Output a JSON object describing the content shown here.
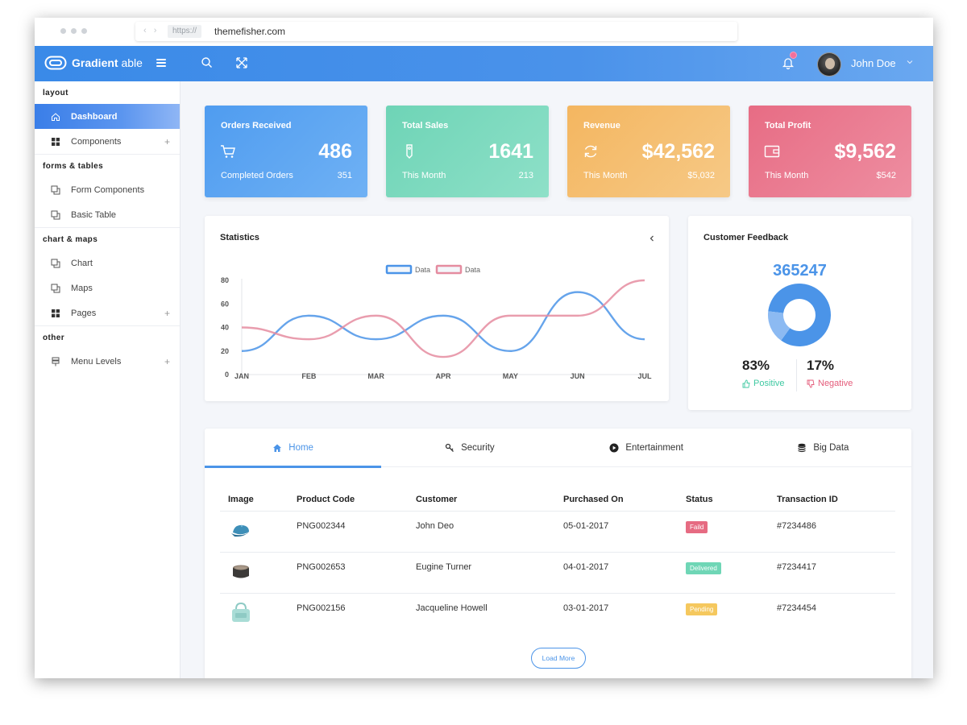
{
  "browser": {
    "protocol": "https://",
    "url": "themefisher.com"
  },
  "header": {
    "brand_bold": "Gradient",
    "brand_light": " able",
    "user_name": "John Doe"
  },
  "sidebar": {
    "sections": [
      {
        "title": "layout",
        "items": [
          {
            "label": "Dashboard",
            "icon": "home-icon",
            "active": true
          },
          {
            "label": "Components",
            "icon": "grid-icon",
            "expandable": true
          }
        ]
      },
      {
        "title": "forms & tables",
        "items": [
          {
            "label": "Form Components",
            "icon": "copy-icon"
          },
          {
            "label": "Basic Table",
            "icon": "copy-icon"
          }
        ]
      },
      {
        "title": "chart & maps",
        "items": [
          {
            "label": "Chart",
            "icon": "copy-icon"
          },
          {
            "label": "Maps",
            "icon": "copy-icon"
          },
          {
            "label": "Pages",
            "icon": "grid-icon",
            "expandable": true
          }
        ]
      },
      {
        "title": "other",
        "items": [
          {
            "label": "Menu Levels",
            "icon": "layers-icon",
            "expandable": true
          }
        ]
      }
    ],
    "expand_symbol": "+"
  },
  "cards": [
    {
      "title": "Orders Received",
      "value": "486",
      "sub_label": "Completed Orders",
      "sub_value": "351",
      "icon": "cart-icon",
      "color": "#4f9cf0"
    },
    {
      "title": "Total Sales",
      "value": "1641",
      "sub_label": "This Month",
      "sub_value": "213",
      "icon": "tag-icon",
      "color": "#6ed4b6"
    },
    {
      "title": "Revenue",
      "value": "$42,562",
      "sub_label": "This Month",
      "sub_value": "$5,032",
      "icon": "refresh-icon",
      "color": "#f4b660"
    },
    {
      "title": "Total Profit",
      "value": "$9,562",
      "sub_label": "This Month",
      "sub_value": "$542",
      "icon": "wallet-icon",
      "color": "#e76c84"
    }
  ],
  "statistics": {
    "title": "Statistics"
  },
  "chart_data": {
    "type": "line",
    "categories": [
      "JAN",
      "FEB",
      "MAR",
      "APR",
      "MAY",
      "JUN",
      "JUL"
    ],
    "series": [
      {
        "name": "Data",
        "color": "#4b94e8",
        "values": [
          20,
          50,
          30,
          50,
          20,
          70,
          30
        ]
      },
      {
        "name": "Data",
        "color": "#e58ca0",
        "values": [
          40,
          30,
          50,
          15,
          50,
          50,
          80
        ]
      }
    ],
    "y_ticks": [
      0,
      20,
      40,
      60,
      80
    ],
    "ylim": [
      0,
      80
    ],
    "legend": "top-center",
    "smooth": true
  },
  "feedback": {
    "title": "Customer Feedback",
    "total": "365247",
    "positive_pct": "83%",
    "positive_label": "Positive",
    "negative_pct": "17%",
    "negative_label": "Negative",
    "positive_fraction": 0.83
  },
  "tabs": [
    {
      "label": "Home",
      "icon": "home-icon",
      "active": true
    },
    {
      "label": "Security",
      "icon": "key-icon"
    },
    {
      "label": "Entertainment",
      "icon": "play-icon"
    },
    {
      "label": "Big Data",
      "icon": "database-icon"
    }
  ],
  "table": {
    "headers": [
      "Image",
      "Product Code",
      "Customer",
      "Purchased On",
      "Status",
      "Transaction ID"
    ],
    "rows": [
      {
        "image": "cap-product-image",
        "code": "PNG002344",
        "customer": "John Deo",
        "date": "05-01-2017",
        "status": "Faild",
        "status_color": "#e66b82",
        "tx": "#7234486"
      },
      {
        "image": "stool-product-image",
        "code": "PNG002653",
        "customer": "Eugine Turner",
        "date": "04-01-2017",
        "status": "Delivered",
        "status_color": "#6fd6b6",
        "tx": "#7234417"
      },
      {
        "image": "bag-product-image",
        "code": "PNG002156",
        "customer": "Jacqueline Howell",
        "date": "03-01-2017",
        "status": "Pending",
        "status_color": "#f5c85e",
        "tx": "#7234454"
      }
    ]
  },
  "load_more_label": "Load More"
}
